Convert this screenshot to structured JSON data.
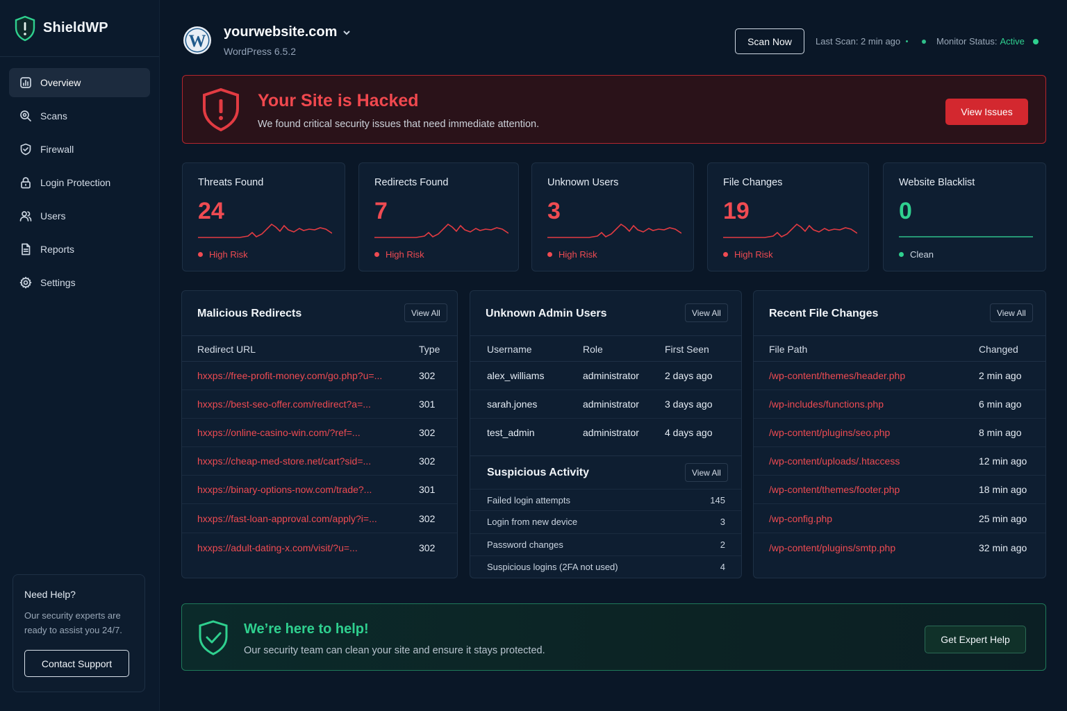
{
  "brand": {
    "name": "ShieldWP"
  },
  "sidebar": {
    "items": [
      {
        "label": "Overview",
        "icon": "chart-icon"
      },
      {
        "label": "Scans",
        "icon": "search-icon"
      },
      {
        "label": "Firewall",
        "icon": "shield-icon"
      },
      {
        "label": "Login Protection",
        "icon": "lock-icon"
      },
      {
        "label": "Users",
        "icon": "users-icon"
      },
      {
        "label": "Reports",
        "icon": "document-icon"
      },
      {
        "label": "Settings",
        "icon": "gear-icon"
      }
    ],
    "help": {
      "title": "Need Help?",
      "text": "Our security experts are ready to assist you 24/7.",
      "button": "Contact Support"
    }
  },
  "header": {
    "site": "yourwebsite.com",
    "version": "WordPress 6.5.2",
    "scan_button": "Scan Now",
    "last_scan": "Last Scan: 2 min ago",
    "monitor_label": "Monitor Status:",
    "monitor_value": "Active"
  },
  "alert": {
    "title": "Your Site is Hacked",
    "desc": "We found critical security issues that need immediate attention.",
    "button": "View Issues"
  },
  "stats": [
    {
      "label": "Threats Found",
      "value": "24",
      "status": "High Risk"
    },
    {
      "label": "Redirects Found",
      "value": "7",
      "status": "High Risk"
    },
    {
      "label": "Unknown Users",
      "value": "3",
      "status": "High Risk"
    },
    {
      "label": "File Changes",
      "value": "19",
      "status": "High Risk"
    },
    {
      "label": "Website Blacklist",
      "value": "0",
      "status": "Clean"
    }
  ],
  "redirects": {
    "title": "Malicious Redirects",
    "view_all": "View All",
    "columns": [
      "Redirect URL",
      "Type"
    ],
    "rows": [
      [
        "hxxps://free-profit-money.com/go.php?u=...",
        "302"
      ],
      [
        "hxxps://best-seo-offer.com/redirect?a=...",
        "301"
      ],
      [
        "hxxps://online-casino-win.com/?ref=...",
        "302"
      ],
      [
        "hxxps://cheap-med-store.net/cart?sid=...",
        "302"
      ],
      [
        "hxxps://binary-options-now.com/trade?...",
        "301"
      ],
      [
        "hxxps://fast-loan-approval.com/apply?i=...",
        "302"
      ],
      [
        "hxxps://adult-dating-x.com/visit/?u=...",
        "302"
      ]
    ]
  },
  "admins": {
    "title": "Unknown Admin Users",
    "view_all": "View All",
    "columns": [
      "Username",
      "Role",
      "First Seen"
    ],
    "rows": [
      [
        "alex_williams",
        "administrator",
        "2 days ago"
      ],
      [
        "sarah.jones",
        "administrator",
        "3 days ago"
      ],
      [
        "test_admin",
        "administrator",
        "4 days ago"
      ]
    ]
  },
  "suspicious": {
    "title": "Suspicious Activity",
    "view_all": "View All",
    "rows": [
      [
        "Failed login attempts",
        "145"
      ],
      [
        "Login from new device",
        "3"
      ],
      [
        "Password changes",
        "2"
      ],
      [
        "Suspicious logins (2FA not used)",
        "4"
      ]
    ]
  },
  "files": {
    "title": "Recent File Changes",
    "view_all": "View All",
    "columns": [
      "File Path",
      "Changed"
    ],
    "rows": [
      [
        "/wp-content/themes/header.php",
        "2 min ago"
      ],
      [
        "/wp-includes/functions.php",
        "6 min ago"
      ],
      [
        "/wp-content/plugins/seo.php",
        "8 min ago"
      ],
      [
        "/wp-content/uploads/.htaccess",
        "12 min ago"
      ],
      [
        "/wp-content/themes/footer.php",
        "18 min ago"
      ],
      [
        "/wp-config.php",
        "25 min ago"
      ],
      [
        "/wp-content/plugins/smtp.php",
        "32 min ago"
      ]
    ]
  },
  "banner": {
    "title": "We’re here to help!",
    "desc": "Our security team can clean your site and ensure it stays protected.",
    "button": "Get Expert Help"
  },
  "colors": {
    "danger": "#ef4b52",
    "success": "#2fd08f",
    "background": "#0a1727"
  }
}
